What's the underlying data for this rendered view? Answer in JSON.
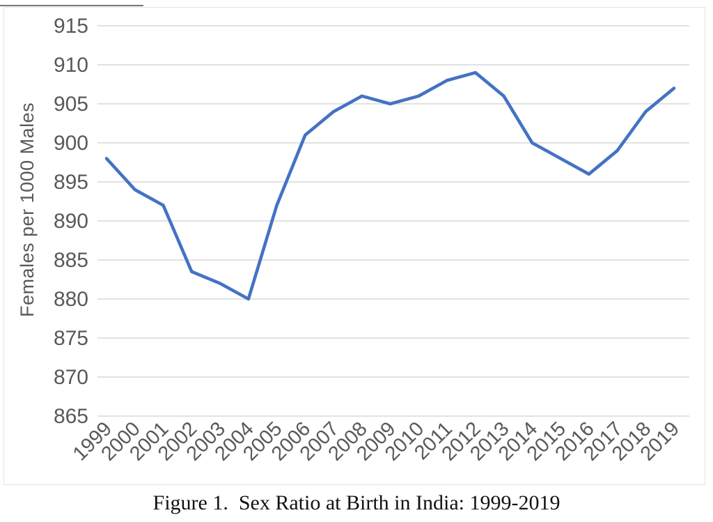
{
  "figure": {
    "caption": "Figure 1.  Sex Ratio at Birth in India: 1999-2019"
  },
  "chart_data": {
    "type": "line",
    "title": "",
    "xlabel": "",
    "ylabel": "Females per 1000 Males",
    "categories": [
      "1999",
      "2000",
      "2001",
      "2002",
      "2003",
      "2004",
      "2005",
      "2006",
      "2007",
      "2008",
      "2009",
      "2010",
      "2011",
      "2012",
      "2013",
      "2014",
      "2015",
      "2016",
      "2017",
      "2018",
      "2019"
    ],
    "values": [
      898,
      894,
      892,
      883.5,
      882,
      880,
      892,
      901,
      904,
      906,
      905,
      906,
      908,
      909,
      906,
      900,
      898,
      896,
      899,
      904,
      907
    ],
    "ylim": [
      865,
      915
    ],
    "ytick_step": 5,
    "grid": true,
    "legend_position": "none",
    "line_color": "#4472C4",
    "axis_text_color": "#595959",
    "gridline_color": "#D9D9D9"
  }
}
